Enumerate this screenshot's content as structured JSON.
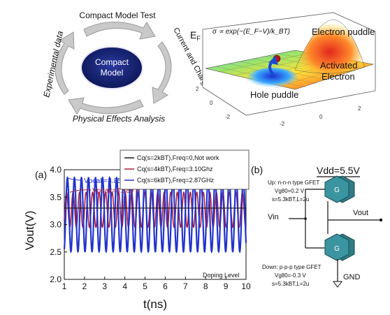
{
  "cycle": {
    "center_line1": "Compact",
    "center_line2": "Model",
    "top": "Compact Model Test",
    "right": "Current and Charge Model",
    "bottom": "Physical Effects Analysis",
    "left": "Experimental data"
  },
  "surface": {
    "electron_puddle": "Electron puddle",
    "hole_puddle": "Hole puddle",
    "activated_line1": "Activated",
    "activated_line2": "Electron",
    "ef": "E",
    "ef_sub": "F",
    "formula": "σ ∝ exp(−(E_F−V)/k_BT)",
    "y_ticks": [
      "2",
      "0",
      "-2"
    ],
    "x_ticks": [
      "-2",
      "0",
      "2"
    ]
  },
  "plot": {
    "panel_label": "(a)",
    "xlabel": "t(ns)",
    "ylabel": "Vout(V)",
    "annotation_peak1": "Vpeak=3.854 V",
    "annotation_peak2": "Vpeak=3.589 V",
    "doping_label": "Doping Level",
    "legend": [
      "Cq(s=2kBT),Freq=0,Not work",
      "Cq(s=4kBT),Freq=3.10Ghz",
      "Cq(s=6kBT),Freq=2.87GHz"
    ],
    "colors": {
      "black": "#1a1a1a",
      "red": "#b0203a",
      "blue": "#2233cc"
    }
  },
  "chart_data": {
    "type": "line",
    "xlabel": "t(ns)",
    "ylabel": "Vout(V)",
    "xlim": [
      1,
      10
    ],
    "ylim": [
      2.0,
      4.0
    ],
    "xticks": [
      1,
      2,
      3,
      4,
      5,
      6,
      7,
      8,
      9,
      10
    ],
    "yticks": [
      2.0,
      2.5,
      3.0,
      3.5,
      4.0
    ],
    "series": [
      {
        "name": "Cq(s=2kBT),Freq=0,Not work",
        "kind": "flat",
        "value": 3.3
      },
      {
        "name": "Cq(s=4kBT),Freq=3.10Ghz",
        "kind": "sine",
        "freq_ghz": 3.1,
        "center": 3.27,
        "amplitude": 0.32
      },
      {
        "name": "Cq(s=6kBT),Freq=2.87GHz",
        "kind": "sine",
        "freq_ghz": 2.87,
        "center": 3.18,
        "amplitude": 0.674
      }
    ]
  },
  "circuit": {
    "panel_label": "(b)",
    "vdd": "Vdd=5.5V",
    "up_type": "Up: n-n-n type GFET",
    "up_vg": "Vg80=0.2 V",
    "up_s": "s=5.3kBT,L=2u",
    "gate_top": "G",
    "gate_bottom": "G",
    "vin": "Vin",
    "vout": "Vout",
    "down_type": "Down: p-p-p type GFET",
    "down_vg": "Vg80=-0.3 V",
    "down_s": "s=5.3kBT,L=2u",
    "gnd": "GND"
  }
}
